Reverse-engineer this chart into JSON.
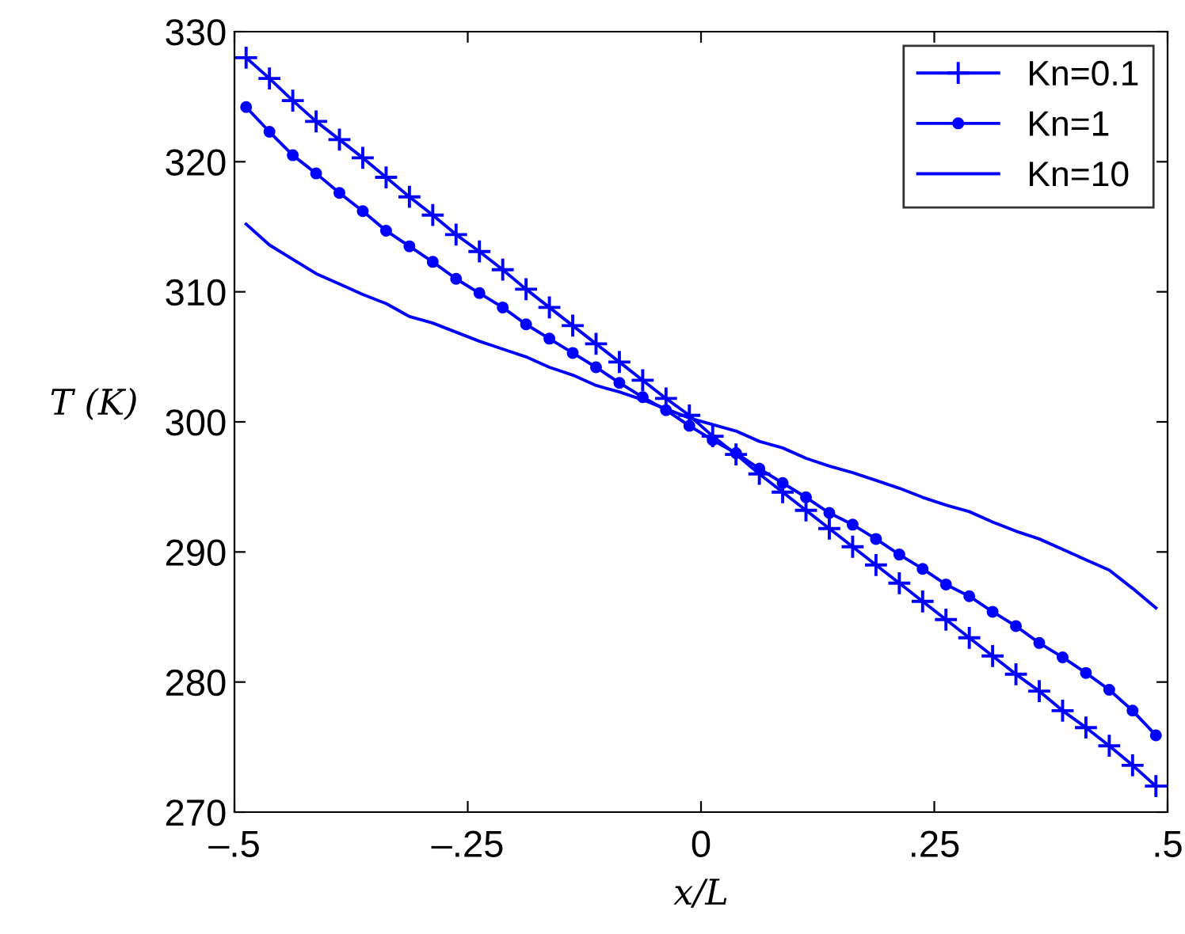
{
  "chart_data": {
    "type": "line",
    "xlabel": "x/L",
    "ylabel": "T (K)",
    "x": [
      -0.4875,
      -0.4625,
      -0.4375,
      -0.4125,
      -0.3875,
      -0.3625,
      -0.3375,
      -0.3125,
      -0.2875,
      -0.2625,
      -0.2375,
      -0.2125,
      -0.1875,
      -0.1625,
      -0.1375,
      -0.1125,
      -0.0875,
      -0.0625,
      -0.0375,
      -0.0125,
      0.0125,
      0.0375,
      0.0625,
      0.0875,
      0.1125,
      0.1375,
      0.1625,
      0.1875,
      0.2125,
      0.2375,
      0.2625,
      0.2875,
      0.3125,
      0.3375,
      0.3625,
      0.3875,
      0.4125,
      0.4375,
      0.4625,
      0.4875
    ],
    "series": [
      {
        "name": "Kn=0.1",
        "color": "#0000ff",
        "marker": "cross",
        "values": [
          328.0,
          326.4,
          324.7,
          323.1,
          321.7,
          320.3,
          318.8,
          317.3,
          315.9,
          314.4,
          313.1,
          311.7,
          310.2,
          308.8,
          307.4,
          306.0,
          304.6,
          303.2,
          301.8,
          300.5,
          298.9,
          297.5,
          296.0,
          294.6,
          293.2,
          291.8,
          290.4,
          289.0,
          287.6,
          286.2,
          284.8,
          283.4,
          282.0,
          280.6,
          279.3,
          277.8,
          276.5,
          275.1,
          273.6,
          272.0
        ]
      },
      {
        "name": "Kn=1",
        "color": "#0000ff",
        "marker": "circle",
        "values": [
          324.2,
          322.3,
          320.5,
          319.1,
          317.6,
          316.2,
          314.7,
          313.5,
          312.3,
          311.0,
          309.9,
          308.8,
          307.5,
          306.4,
          305.3,
          304.2,
          303.0,
          301.9,
          300.9,
          299.7,
          298.6,
          297.6,
          296.4,
          295.3,
          294.2,
          293.0,
          292.1,
          291.0,
          289.8,
          288.7,
          287.5,
          286.6,
          285.4,
          284.3,
          283.0,
          281.9,
          280.7,
          279.4,
          277.8,
          275.9
        ]
      },
      {
        "name": "Kn=10",
        "color": "#0000ff",
        "marker": "none",
        "values": [
          315.2,
          313.6,
          312.5,
          311.4,
          310.6,
          309.8,
          309.1,
          308.1,
          307.6,
          306.9,
          306.2,
          305.6,
          305.0,
          304.2,
          303.6,
          302.8,
          302.3,
          301.7,
          301.0,
          300.3,
          299.8,
          299.3,
          298.5,
          298.0,
          297.2,
          296.6,
          296.1,
          295.5,
          294.9,
          294.2,
          293.6,
          293.1,
          292.3,
          291.6,
          291.0,
          290.2,
          289.4,
          288.6,
          287.2,
          285.7
        ]
      }
    ],
    "xlim": [
      -0.5,
      0.5
    ],
    "xticks": [
      {
        "value": -0.5,
        "label": "–.5"
      },
      {
        "value": -0.25,
        "label": "–.25"
      },
      0,
      {
        "value": 0.25,
        "label": ".25"
      },
      {
        "value": 0.5,
        "label": ".5"
      }
    ],
    "ylim": [
      270,
      330
    ],
    "yticks": [
      270,
      280,
      290,
      300,
      310,
      320,
      330
    ],
    "legend": "top right",
    "grid": false,
    "line_style": "solid"
  }
}
